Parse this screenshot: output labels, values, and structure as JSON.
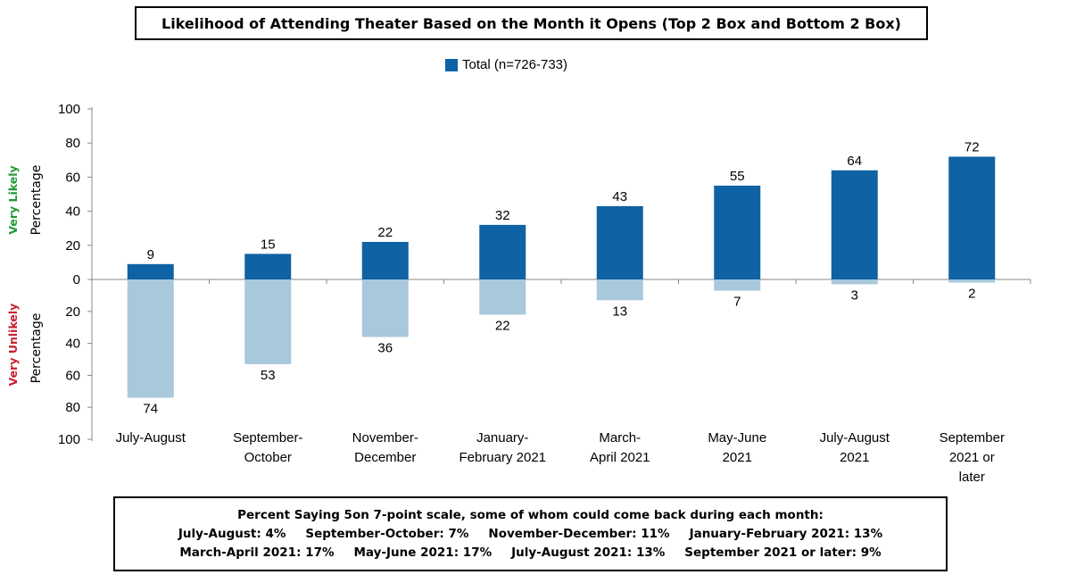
{
  "title": "Likelihood of Attending Theater Based on the Month it Opens (Top 2 Box and Bottom 2 Box)",
  "legend": {
    "label": "Total (n=726-733)",
    "color": "#0f62a3"
  },
  "side_labels": {
    "top_group": "Very Likely",
    "top_axis": "Percentage",
    "bottom_group": "Very Unlikely",
    "bottom_axis": "Percentage"
  },
  "chart_data": {
    "type": "bar",
    "title": "Likelihood of Attending Theater Based on the Month it Opens (Top 2 Box and Bottom 2 Box)",
    "categories": [
      [
        "July-August"
      ],
      [
        "September-",
        "October"
      ],
      [
        "November-",
        "December"
      ],
      [
        "January-",
        "February 2021"
      ],
      [
        "March-",
        "April 2021"
      ],
      [
        "May-June",
        "2021"
      ],
      [
        "July-August",
        "2021"
      ],
      [
        "September",
        "2021 or",
        "later"
      ]
    ],
    "series": [
      {
        "name": "Total (n=726-733)",
        "group": "Very Likely",
        "direction": "up",
        "color": "#0f62a3",
        "values": [
          9,
          15,
          22,
          32,
          43,
          55,
          64,
          72
        ]
      },
      {
        "group": "Very Unlikely",
        "direction": "down",
        "color": "#a8c8dc",
        "values": [
          74,
          53,
          36,
          22,
          13,
          7,
          3,
          2
        ]
      }
    ],
    "y_ticks_up": [
      0,
      20,
      40,
      60,
      80,
      100
    ],
    "y_ticks_down": [
      20,
      40,
      60,
      80,
      100
    ],
    "ylim": [
      -100,
      100
    ],
    "grid": false,
    "legend_position": "top-center"
  },
  "note": {
    "heading": "Percent Saying 5on 7-point scale, some of whom could come back during each month:",
    "row1": [
      "July-August: 4%",
      "September-October: 7%",
      "November-December: 11%",
      "January-February 2021: 13%"
    ],
    "row2": [
      "March-April 2021: 17%",
      "May-June 2021: 17%",
      "July-August 2021: 13%",
      "September 2021 or later: 9%"
    ]
  }
}
